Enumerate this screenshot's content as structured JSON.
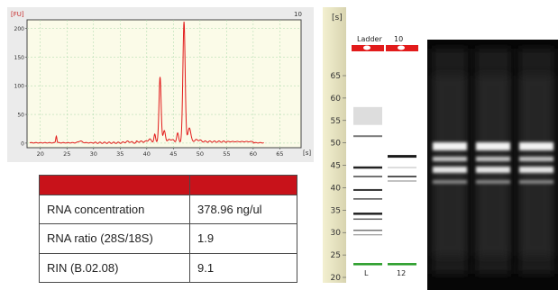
{
  "electropherogram": {
    "y_unit": "[FU]",
    "x_unit": "[s]",
    "corner_label": "10",
    "y_ticks": [
      0,
      50,
      100,
      150,
      200
    ],
    "x_ticks": [
      20,
      25,
      30,
      35,
      40,
      45,
      50,
      55,
      60,
      65
    ],
    "colors": {
      "plot_bg": "#fbfbe8",
      "trace": "#e21b1b",
      "grid": "#9ed59e"
    }
  },
  "gel": {
    "axis_unit": "[s]",
    "axis_ticks": [
      65,
      60,
      55,
      50,
      45,
      40,
      35,
      30,
      25,
      20
    ],
    "lanes": [
      {
        "header": "Ladder",
        "footer": "L"
      },
      {
        "header": "10",
        "footer": "12"
      }
    ],
    "colors": {
      "well_marker": "#e21b1b",
      "lower_marker": "#2a9d2a"
    }
  },
  "stats_table": {
    "rows": [
      {
        "label": "RNA concentration",
        "value": "378.96 ng/ul"
      },
      {
        "label": "RNA ratio (28S/18S)",
        "value": "1.9"
      },
      {
        "label": "RIN  (B.02.08)",
        "value": "9.1"
      }
    ],
    "header_color": "#c8121a"
  },
  "northern_blot": {
    "lane_count": 3
  }
}
